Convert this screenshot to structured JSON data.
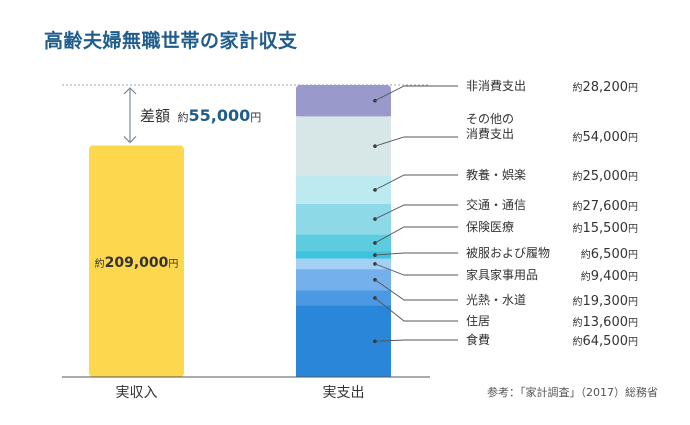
{
  "chart_data": {
    "type": "bar",
    "title": "高齢夫婦無職世帯の家計収支",
    "categories": [
      "実収入",
      "実支出"
    ],
    "income": {
      "category": "実収入",
      "value": 209000,
      "label_prefix": "約",
      "label_value": "209,000",
      "label_unit": "円",
      "color": "#fdd84e"
    },
    "difference": {
      "label": "差額",
      "value": 55000,
      "label_prefix": "約",
      "label_value": "55,000",
      "label_unit": "円"
    },
    "series": [
      {
        "name": "食費",
        "value": 64500,
        "prefix": "約",
        "display": "64,500",
        "unit": "円",
        "color": "#2a86d9"
      },
      {
        "name": "住居",
        "value": 13600,
        "prefix": "約",
        "display": "13,600",
        "unit": "円",
        "color": "#4b98e3"
      },
      {
        "name": "光熱・水道",
        "value": 19300,
        "prefix": "約",
        "display": "19,300",
        "unit": "円",
        "color": "#74b1ec"
      },
      {
        "name": "家具家事用品",
        "value": 9400,
        "prefix": "約",
        "display": "9,400",
        "unit": "円",
        "color": "#a5cff3"
      },
      {
        "name": "被服および履物",
        "value": 6500,
        "prefix": "約",
        "display": "6,500",
        "unit": "円",
        "color": "#3ec3de"
      },
      {
        "name": "保険医療",
        "value": 15500,
        "prefix": "約",
        "display": "15,500",
        "unit": "円",
        "color": "#5dccdf"
      },
      {
        "name": "交通・通信",
        "value": 27600,
        "prefix": "約",
        "display": "27,600",
        "unit": "円",
        "color": "#8ed9e8"
      },
      {
        "name": "教養・娯楽",
        "value": 25000,
        "prefix": "約",
        "display": "25,000",
        "unit": "円",
        "color": "#bde9f0"
      },
      {
        "name": "その他の消費支出",
        "name_lines": [
          "その他の",
          "消費支出"
        ],
        "value": 54000,
        "prefix": "約",
        "display": "54,000",
        "unit": "円",
        "color": "#d7e6e6"
      },
      {
        "name": "非消費支出",
        "value": 28200,
        "prefix": "約",
        "display": "28,200",
        "unit": "円",
        "color": "#9a99cb"
      }
    ],
    "source": "参考：「家計調査」（2017）総務省",
    "grid": false,
    "legend": "right"
  }
}
